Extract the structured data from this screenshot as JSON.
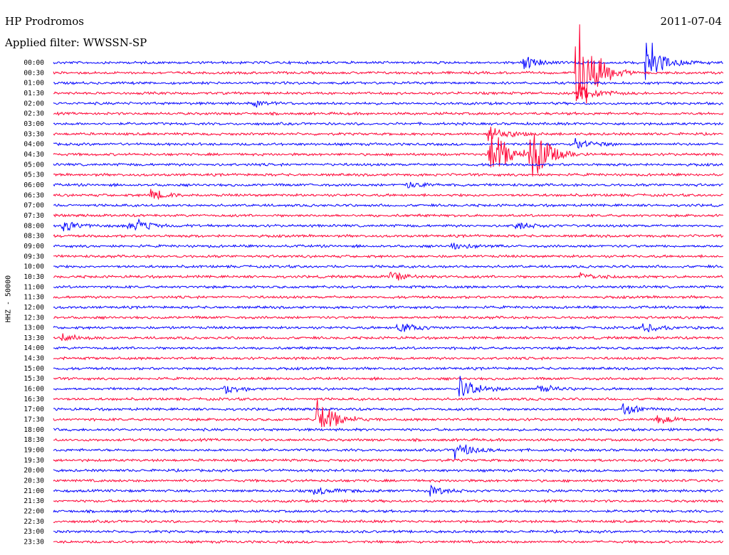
{
  "header": {
    "station": "HP Prodromos",
    "filter": "Applied filter: WWSSN-SP",
    "date": "2011-07-04"
  },
  "channel_label": "HHZ - 50000",
  "colors": {
    "even_row": "#0000ff",
    "odd_row": "#ff0033",
    "background": "#ffffff"
  },
  "chart_data": {
    "type": "line",
    "title": "HP Prodromos",
    "date": "2011-07-04",
    "ylabel": "HHZ - 50000",
    "row_labels": [
      "00:00",
      "00:30",
      "01:00",
      "01:30",
      "02:00",
      "02:30",
      "03:00",
      "03:30",
      "04:00",
      "04:30",
      "05:00",
      "05:30",
      "06:00",
      "06:30",
      "07:00",
      "07:30",
      "08:00",
      "08:30",
      "09:00",
      "09:30",
      "10:00",
      "10:30",
      "11:00",
      "11:30",
      "12:00",
      "12:30",
      "13:00",
      "13:30",
      "14:00",
      "14:30",
      "15:00",
      "15:30",
      "16:00",
      "16:30",
      "17:00",
      "17:30",
      "18:00",
      "18:30",
      "19:00",
      "19:30",
      "20:00",
      "20:30",
      "21:00",
      "21:30",
      "22:00",
      "22:30",
      "23:00",
      "23:30"
    ],
    "row_duration_minutes": 30,
    "row_colors_alternating": [
      "#0000ff",
      "#ff0033"
    ],
    "events": [
      {
        "row": 0,
        "minute": 21.0,
        "amplitude": 0.8
      },
      {
        "row": 0,
        "minute": 26.5,
        "amplitude": 3.0
      },
      {
        "row": 1,
        "minute": 23.4,
        "amplitude": 8.0
      },
      {
        "row": 3,
        "minute": 23.5,
        "amplitude": 1.5
      },
      {
        "row": 4,
        "minute": 9.0,
        "amplitude": 0.4
      },
      {
        "row": 7,
        "minute": 19.5,
        "amplitude": 1.2
      },
      {
        "row": 8,
        "minute": 23.4,
        "amplitude": 0.6
      },
      {
        "row": 9,
        "minute": 19.5,
        "amplitude": 4.0
      },
      {
        "row": 9,
        "minute": 21.3,
        "amplitude": 4.0
      },
      {
        "row": 12,
        "minute": 15.7,
        "amplitude": 0.5
      },
      {
        "row": 13,
        "minute": 4.4,
        "amplitude": 0.6
      },
      {
        "row": 16,
        "minute": 0.4,
        "amplitude": 0.6
      },
      {
        "row": 16,
        "minute": 3.3,
        "amplitude": 0.4
      },
      {
        "row": 16,
        "minute": 3.6,
        "amplitude": 0.5
      },
      {
        "row": 16,
        "minute": 20.7,
        "amplitude": 0.5
      },
      {
        "row": 18,
        "minute": 17.8,
        "amplitude": 0.5
      },
      {
        "row": 21,
        "minute": 15.1,
        "amplitude": 0.6
      },
      {
        "row": 21,
        "minute": 23.6,
        "amplitude": 0.6
      },
      {
        "row": 26,
        "minute": 15.4,
        "amplitude": 0.7
      },
      {
        "row": 26,
        "minute": 26.4,
        "amplitude": 0.6
      },
      {
        "row": 27,
        "minute": 0.3,
        "amplitude": 0.5
      },
      {
        "row": 32,
        "minute": 7.6,
        "amplitude": 0.6
      },
      {
        "row": 32,
        "minute": 18.2,
        "amplitude": 1.5
      },
      {
        "row": 32,
        "minute": 21.7,
        "amplitude": 0.5
      },
      {
        "row": 34,
        "minute": 25.5,
        "amplitude": 0.6
      },
      {
        "row": 35,
        "minute": 11.8,
        "amplitude": 2.8
      },
      {
        "row": 35,
        "minute": 27.0,
        "amplitude": 0.5
      },
      {
        "row": 38,
        "minute": 18.0,
        "amplitude": 1.0
      },
      {
        "row": 42,
        "minute": 11.7,
        "amplitude": 0.6
      },
      {
        "row": 42,
        "minute": 16.9,
        "amplitude": 0.5
      }
    ]
  }
}
